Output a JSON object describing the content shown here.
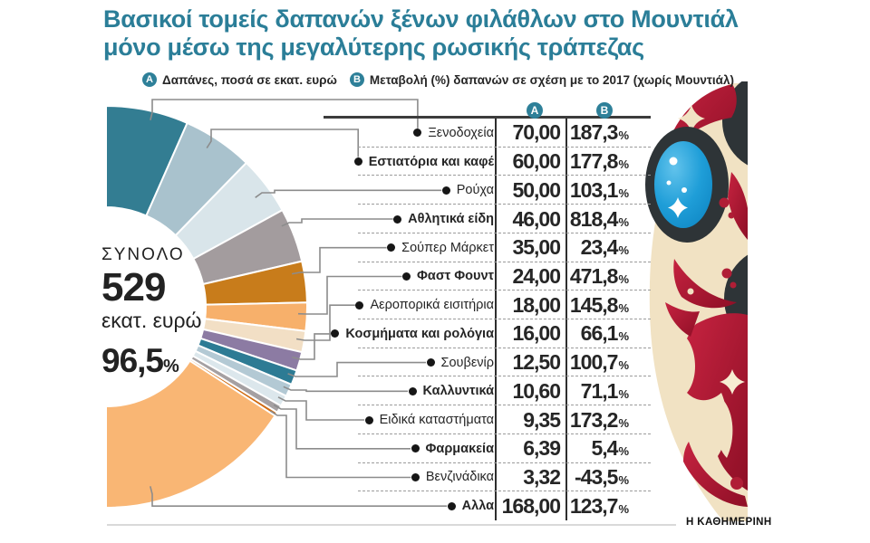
{
  "title": {
    "line1": "Βασικοί τομείς δαπανών ξένων φιλάθλων στο Μουντιάλ",
    "line2": "μόνο μέσω της μεγαλύτερης ρωσικής τράπεζας"
  },
  "legend": {
    "a_badge": "A",
    "a_text": "Δαπάνες, ποσά σε εκατ. ευρώ",
    "b_badge": "B",
    "b_text": "Μεταβολή (%) δαπανών σε σχέση με το 2017 (χωρίς Μουντιάλ)"
  },
  "table": {
    "col_a_header": "A",
    "col_b_header": "B",
    "percent_symbol": "%"
  },
  "total": {
    "label": "ΣΥΝΟΛΟ",
    "value": "529",
    "unit": "εκατ. ευρώ",
    "coverage": "96,5",
    "coverage_symbol": "%"
  },
  "footer": {
    "brand": "Η ΚΑΘΗΜΕΡΙΝΗ"
  },
  "colors": {
    "accent_teal": "#2e8099",
    "title_teal": "#2b7e98",
    "text_dark": "#262626",
    "leader_gray": "#8c8c8c"
  },
  "chart_data": {
    "type": "pie",
    "variant": "half-donut",
    "title": "Βασικοί τομείς δαπανών ξένων φιλάθλων στο Μουντιάλ μόνο μέσω της μεγαλύτερης ρωσικής τράπεζας",
    "unit": "εκατ. ευρώ",
    "total_million_eur": 529,
    "coverage_pct": 96.5,
    "legend_position": "top",
    "column_a": "Δαπάνες, ποσά σε εκατ. ευρώ",
    "column_b": "Μεταβολή (%) δαπανών σε σχέση με το 2017 (χωρίς Μουντιάλ)",
    "rows": [
      {
        "label": "Ξενοδοχεία",
        "amount": "70,00",
        "amount_value": 70.0,
        "change": "187,3",
        "change_value": 187.3,
        "color": "#337d92",
        "bold": false
      },
      {
        "label": "Εστιατόρια και καφέ",
        "amount": "60,00",
        "amount_value": 60.0,
        "change": "177,8",
        "change_value": 177.8,
        "color": "#a9c2cd",
        "bold": true
      },
      {
        "label": "Ρούχα",
        "amount": "50,00",
        "amount_value": 50.0,
        "change": "103,1",
        "change_value": 103.1,
        "color": "#d9e5ea",
        "bold": false
      },
      {
        "label": "Αθλητικά είδη",
        "amount": "46,00",
        "amount_value": 46.0,
        "change": "818,4",
        "change_value": 818.4,
        "color": "#a39c9e",
        "bold": true
      },
      {
        "label": "Σούπερ Μάρκετ",
        "amount": "35,00",
        "amount_value": 35.0,
        "change": "23,4",
        "change_value": 23.4,
        "color": "#c87c1b",
        "bold": false
      },
      {
        "label": "Φαστ Φουντ",
        "amount": "24,00",
        "amount_value": 24.0,
        "change": "471,8",
        "change_value": 471.8,
        "color": "#f7b06b",
        "bold": true
      },
      {
        "label": "Αεροπορικά εισιτήρια",
        "amount": "18,00",
        "amount_value": 18.0,
        "change": "145,8",
        "change_value": 145.8,
        "color": "#f2dfc5",
        "bold": false
      },
      {
        "label": "Κοσμήματα και ρολόγια",
        "amount": "16,00",
        "amount_value": 16.0,
        "change": "66,1",
        "change_value": 66.1,
        "color": "#8c7ba3",
        "bold": true
      },
      {
        "label": "Σουβενίρ",
        "amount": "12,50",
        "amount_value": 12.5,
        "change": "100,7",
        "change_value": 100.7,
        "color": "#2d7b94",
        "bold": false
      },
      {
        "label": "Καλλυντικά",
        "amount": "10,60",
        "amount_value": 10.6,
        "change": "71,1",
        "change_value": 71.1,
        "color": "#b3c9d4",
        "bold": true
      },
      {
        "label": "Ειδικά καταστήματα",
        "amount": "9,35",
        "amount_value": 9.35,
        "change": "173,2",
        "change_value": 173.2,
        "color": "#dce7ec",
        "bold": false
      },
      {
        "label": "Φαρμακεία",
        "amount": "6,39",
        "amount_value": 6.39,
        "change": "5,4",
        "change_value": 5.4,
        "color": "#a5a0a2",
        "bold": true
      },
      {
        "label": "Βενζινάδικα",
        "amount": "3,32",
        "amount_value": 3.32,
        "change": "-43,5",
        "change_value": -43.5,
        "color": "#d06a10",
        "bold": false
      },
      {
        "label": "Αλλα",
        "amount": "168,00",
        "amount_value": 168.0,
        "change": "123,7",
        "change_value": 123.7,
        "color": "#f9b674",
        "bold": true
      }
    ]
  }
}
